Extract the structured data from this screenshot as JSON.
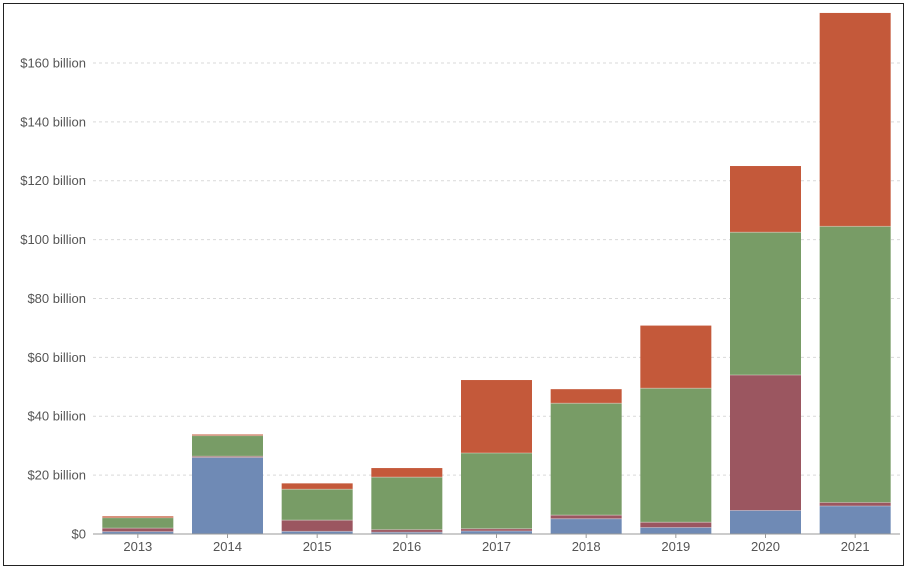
{
  "chart_data": {
    "type": "bar",
    "stacked": true,
    "categories": [
      "2013",
      "2014",
      "2015",
      "2016",
      "2017",
      "2018",
      "2019",
      "2020",
      "2021"
    ],
    "series": [
      {
        "color": "#6f8ab5",
        "values": [
          0.8,
          26.0,
          0.9,
          0.6,
          1.0,
          5.2,
          2.2,
          8.0,
          9.5
        ]
      },
      {
        "color": "#9b5660",
        "values": [
          1.2,
          0.4,
          3.8,
          0.9,
          0.8,
          1.2,
          1.8,
          46.0,
          1.2
        ]
      },
      {
        "color": "#789c66",
        "values": [
          3.5,
          7.0,
          10.5,
          17.8,
          25.7,
          38.0,
          45.5,
          48.5,
          93.8
        ]
      },
      {
        "color": "#c4593a",
        "values": [
          0.5,
          0.4,
          2.0,
          3.1,
          24.8,
          4.8,
          21.3,
          22.5,
          72.5
        ]
      }
    ],
    "ylim": [
      0,
      178
    ],
    "yticks": [
      {
        "value": 0,
        "label": "$0"
      },
      {
        "value": 20,
        "label": "$20 billion"
      },
      {
        "value": 40,
        "label": "$40 billion"
      },
      {
        "value": 60,
        "label": "$60 billion"
      },
      {
        "value": 80,
        "label": "$80 billion"
      },
      {
        "value": 100,
        "label": "$100 billion"
      },
      {
        "value": 120,
        "label": "$120 billion"
      },
      {
        "value": 140,
        "label": "$140 billion"
      },
      {
        "value": 160,
        "label": "$160 billion"
      }
    ],
    "grid": true,
    "legend": "none"
  }
}
